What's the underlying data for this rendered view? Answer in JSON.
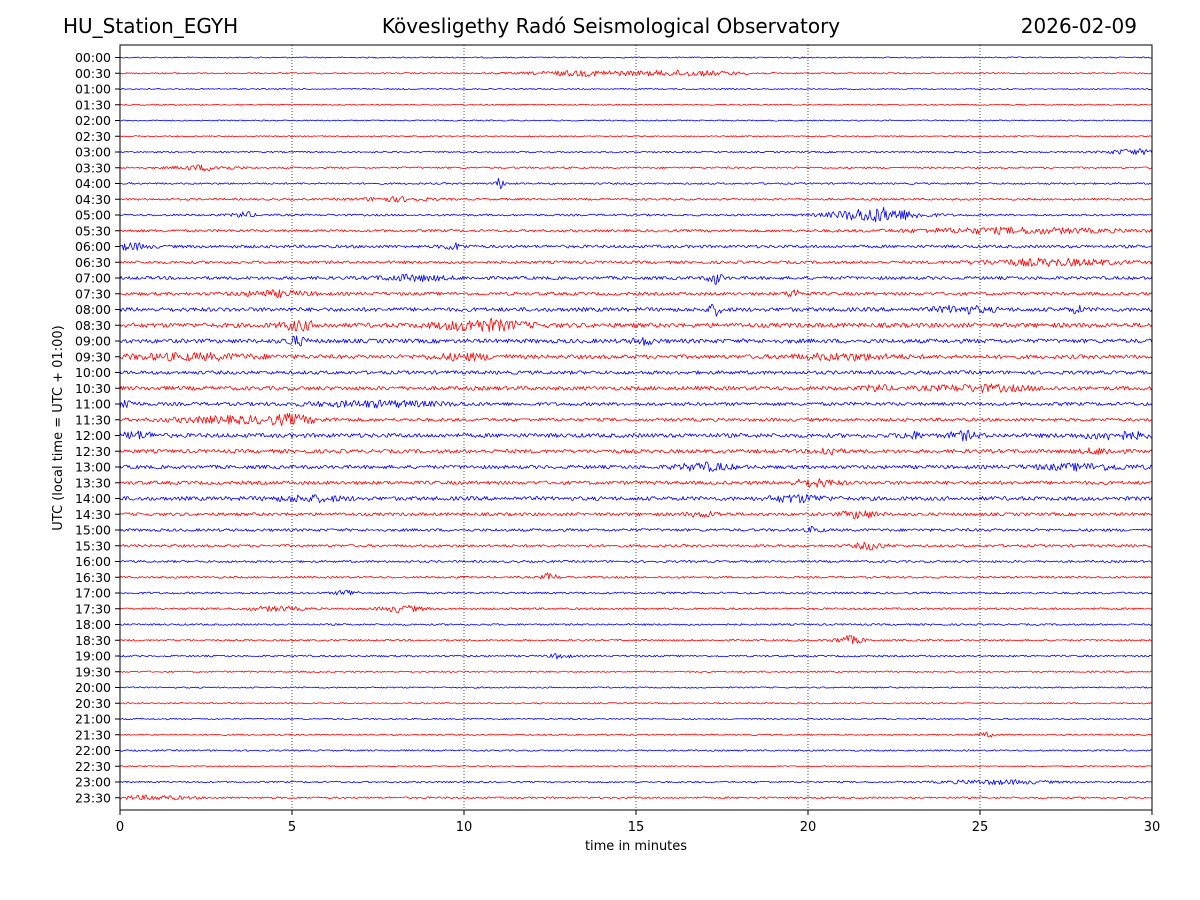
{
  "header": {
    "station": "HU_Station_EGYH",
    "observatory": "Kövesligethy Radó Seismological Observatory",
    "date": "2026-02-09"
  },
  "chart_data": {
    "type": "line",
    "title": "Kövesligethy Radó Seismological Observatory",
    "xlabel": "time in minutes",
    "ylabel": "UTC (local time = UTC + 01:00)",
    "xlim": [
      0,
      30
    ],
    "x_ticks": [
      "0",
      "5",
      "10",
      "15",
      "20",
      "25",
      "30"
    ],
    "grid": "vertical dotted lines at each 5-minute tick",
    "series_colors": [
      "#0000ff",
      "#ff0000"
    ],
    "rows": [
      {
        "label": "00:00",
        "noise": 0.6,
        "events": []
      },
      {
        "label": "00:30",
        "noise": 0.7,
        "events": [
          {
            "t": 13.5,
            "amp": 2.5,
            "dur": 1.5
          },
          {
            "t": 16.5,
            "amp": 2.5,
            "dur": 1.5
          }
        ]
      },
      {
        "label": "01:00",
        "noise": 0.6,
        "events": []
      },
      {
        "label": "01:30",
        "noise": 0.6,
        "events": []
      },
      {
        "label": "02:00",
        "noise": 0.6,
        "events": []
      },
      {
        "label": "02:30",
        "noise": 0.6,
        "events": []
      },
      {
        "label": "03:00",
        "noise": 0.8,
        "events": [
          {
            "t": 29.5,
            "amp": 2.5,
            "dur": 0.8
          }
        ]
      },
      {
        "label": "03:30",
        "noise": 0.9,
        "events": [
          {
            "t": 2.5,
            "amp": 2.5,
            "dur": 0.8
          }
        ]
      },
      {
        "label": "04:00",
        "noise": 0.9,
        "events": [
          {
            "t": 11.05,
            "amp": 5,
            "dur": 0.15
          }
        ]
      },
      {
        "label": "04:30",
        "noise": 1.0,
        "events": [
          {
            "t": 8.0,
            "amp": 2,
            "dur": 1.0
          }
        ]
      },
      {
        "label": "05:00",
        "noise": 1.0,
        "events": [
          {
            "t": 3.6,
            "amp": 3,
            "dur": 0.3
          },
          {
            "t": 22.0,
            "amp": 7,
            "dur": 1.2
          }
        ]
      },
      {
        "label": "05:30",
        "noise": 1.3,
        "events": [
          {
            "t": 26.0,
            "amp": 2.5,
            "dur": 3.0
          }
        ]
      },
      {
        "label": "06:00",
        "noise": 1.5,
        "events": [
          {
            "t": 0.3,
            "amp": 3,
            "dur": 0.5
          },
          {
            "t": 9.7,
            "amp": 3,
            "dur": 0.3
          }
        ]
      },
      {
        "label": "06:30",
        "noise": 1.4,
        "events": [
          {
            "t": 27.0,
            "amp": 3,
            "dur": 2.0
          }
        ]
      },
      {
        "label": "07:00",
        "noise": 1.6,
        "events": [
          {
            "t": 17.3,
            "amp": 6,
            "dur": 0.2
          },
          {
            "t": 8.5,
            "amp": 2.5,
            "dur": 1.0
          }
        ]
      },
      {
        "label": "07:30",
        "noise": 1.6,
        "events": [
          {
            "t": 19.6,
            "amp": 4,
            "dur": 0.2
          },
          {
            "t": 4.5,
            "amp": 2.5,
            "dur": 1.0
          }
        ]
      },
      {
        "label": "08:00",
        "noise": 2.0,
        "events": [
          {
            "t": 17.3,
            "amp": 5,
            "dur": 0.2
          },
          {
            "t": 24.5,
            "amp": 3,
            "dur": 0.8
          },
          {
            "t": 27.8,
            "amp": 3,
            "dur": 0.2
          }
        ]
      },
      {
        "label": "08:30",
        "noise": 2.3,
        "events": [
          {
            "t": 5.2,
            "amp": 4,
            "dur": 0.5
          },
          {
            "t": 10.5,
            "amp": 5,
            "dur": 1.2
          }
        ]
      },
      {
        "label": "09:00",
        "noise": 2.1,
        "events": [
          {
            "t": 5.1,
            "amp": 4,
            "dur": 0.3
          },
          {
            "t": 15.2,
            "amp": 3,
            "dur": 0.3
          }
        ]
      },
      {
        "label": "09:30",
        "noise": 2.0,
        "events": [
          {
            "t": 2.0,
            "amp": 2.5,
            "dur": 2.0
          },
          {
            "t": 10.0,
            "amp": 2.5,
            "dur": 1.0
          },
          {
            "t": 21.0,
            "amp": 2.5,
            "dur": 1.5
          }
        ]
      },
      {
        "label": "10:00",
        "noise": 1.8,
        "events": []
      },
      {
        "label": "10:30",
        "noise": 2.0,
        "events": [
          {
            "t": 22.0,
            "amp": 3,
            "dur": 0.3
          },
          {
            "t": 25.0,
            "amp": 2.5,
            "dur": 1.5
          }
        ]
      },
      {
        "label": "11:00",
        "noise": 1.7,
        "events": [
          {
            "t": 0.1,
            "amp": 5,
            "dur": 0.3
          },
          {
            "t": 7.5,
            "amp": 2.5,
            "dur": 2.0
          }
        ]
      },
      {
        "label": "11:30",
        "noise": 1.6,
        "events": [
          {
            "t": 3.5,
            "amp": 3,
            "dur": 2.0
          },
          {
            "t": 5.0,
            "amp": 3,
            "dur": 0.6
          }
        ]
      },
      {
        "label": "12:00",
        "noise": 2.1,
        "events": [
          {
            "t": 0.5,
            "amp": 3,
            "dur": 0.5
          },
          {
            "t": 23.0,
            "amp": 3,
            "dur": 0.3
          },
          {
            "t": 24.5,
            "amp": 3.5,
            "dur": 0.4
          },
          {
            "t": 29.0,
            "amp": 3,
            "dur": 1.0
          }
        ]
      },
      {
        "label": "12:30",
        "noise": 1.9,
        "events": [
          {
            "t": 20.6,
            "amp": 4,
            "dur": 0.3
          },
          {
            "t": 28.5,
            "amp": 2.5,
            "dur": 0.5
          }
        ]
      },
      {
        "label": "13:00",
        "noise": 1.8,
        "events": [
          {
            "t": 17.0,
            "amp": 3.5,
            "dur": 0.8
          },
          {
            "t": 28.0,
            "amp": 2.5,
            "dur": 1.5
          }
        ]
      },
      {
        "label": "13:30",
        "noise": 1.8,
        "events": [
          {
            "t": 20.2,
            "amp": 3.5,
            "dur": 0.6
          }
        ]
      },
      {
        "label": "14:00",
        "noise": 2.0,
        "events": [
          {
            "t": 19.7,
            "amp": 3,
            "dur": 0.8
          },
          {
            "t": 5.5,
            "amp": 2.5,
            "dur": 1.0
          }
        ]
      },
      {
        "label": "14:30",
        "noise": 1.6,
        "events": [
          {
            "t": 21.5,
            "amp": 3.5,
            "dur": 0.5
          },
          {
            "t": 17.0,
            "amp": 2,
            "dur": 0.5
          }
        ]
      },
      {
        "label": "15:00",
        "noise": 1.4,
        "events": [
          {
            "t": 20.2,
            "amp": 3,
            "dur": 0.2
          }
        ]
      },
      {
        "label": "15:30",
        "noise": 1.3,
        "events": [
          {
            "t": 21.8,
            "amp": 3.5,
            "dur": 0.4
          }
        ]
      },
      {
        "label": "16:00",
        "noise": 1.1,
        "events": []
      },
      {
        "label": "16:30",
        "noise": 1.0,
        "events": [
          {
            "t": 12.5,
            "amp": 4,
            "dur": 0.2
          }
        ]
      },
      {
        "label": "17:00",
        "noise": 1.0,
        "events": [
          {
            "t": 6.6,
            "amp": 3,
            "dur": 0.3
          }
        ]
      },
      {
        "label": "17:30",
        "noise": 1.0,
        "events": [
          {
            "t": 8.2,
            "amp": 3,
            "dur": 0.6
          },
          {
            "t": 4.5,
            "amp": 2,
            "dur": 0.8
          }
        ]
      },
      {
        "label": "18:00",
        "noise": 0.9,
        "events": []
      },
      {
        "label": "18:30",
        "noise": 0.9,
        "events": [
          {
            "t": 21.2,
            "amp": 4,
            "dur": 0.4
          }
        ]
      },
      {
        "label": "19:00",
        "noise": 0.9,
        "events": [
          {
            "t": 12.8,
            "amp": 2.5,
            "dur": 0.3
          }
        ]
      },
      {
        "label": "19:30",
        "noise": 0.8,
        "events": []
      },
      {
        "label": "20:00",
        "noise": 0.7,
        "events": []
      },
      {
        "label": "20:30",
        "noise": 0.7,
        "events": []
      },
      {
        "label": "21:00",
        "noise": 0.7,
        "events": []
      },
      {
        "label": "21:30",
        "noise": 0.7,
        "events": [
          {
            "t": 25.2,
            "amp": 2,
            "dur": 0.3
          }
        ]
      },
      {
        "label": "22:00",
        "noise": 0.8,
        "events": []
      },
      {
        "label": "22:30",
        "noise": 0.6,
        "events": []
      },
      {
        "label": "23:00",
        "noise": 0.8,
        "events": [
          {
            "t": 25.5,
            "amp": 2,
            "dur": 1.5
          }
        ]
      },
      {
        "label": "23:30",
        "noise": 0.9,
        "events": [
          {
            "t": 1.0,
            "amp": 2,
            "dur": 1.0
          }
        ]
      }
    ]
  }
}
